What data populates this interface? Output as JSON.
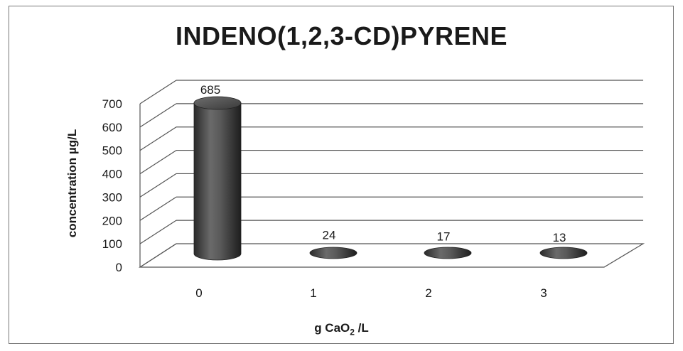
{
  "chart_data": {
    "type": "bar",
    "title": "INDENO(1,2,3-CD)PYRENE",
    "ylabel": "concentration µg/L",
    "xlabel": {
      "prefix": "g CaO",
      "subscript": "2",
      "suffix": " /L"
    },
    "categories": [
      "0",
      "1",
      "2",
      "3"
    ],
    "values": [
      685,
      24,
      17,
      13
    ],
    "data_labels": [
      "685",
      "24",
      "17",
      "13"
    ],
    "yticks": [
      "0",
      "100",
      "200",
      "300",
      "400",
      "500",
      "600",
      "700"
    ],
    "ylim": [
      0,
      700
    ],
    "grid": true,
    "legend": "none",
    "bar_color": "#555555"
  }
}
